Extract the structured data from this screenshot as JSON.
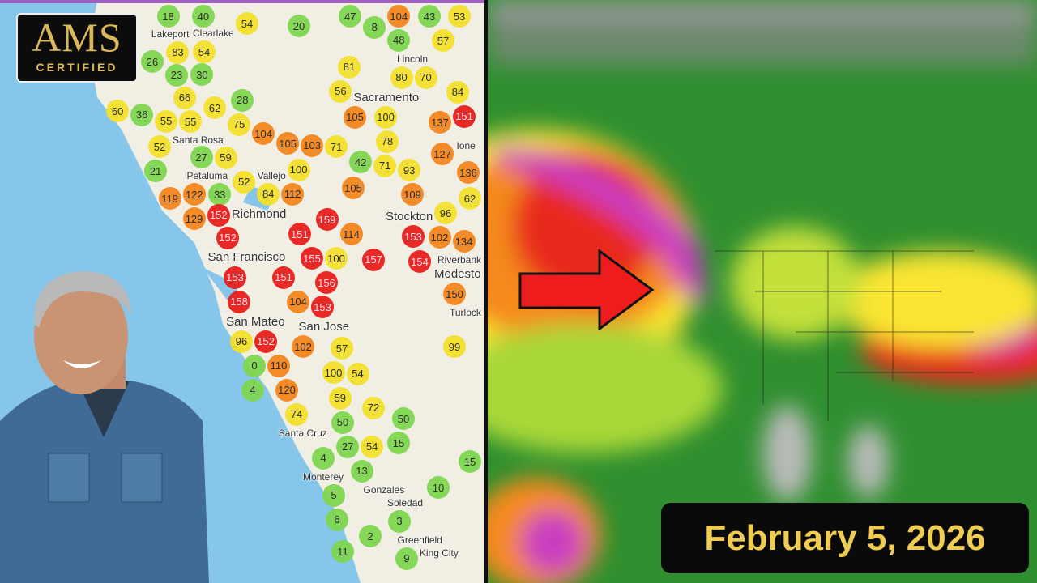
{
  "badge": {
    "line1": "AMS",
    "line2": "CERTIFIED"
  },
  "date_label": "February 5, 2026",
  "aqi_map": {
    "cities": [
      "Lakeport",
      "Clearlake",
      "Lincoln",
      "Sacramento",
      "Santa Rosa",
      "Petaluma",
      "Vallejo",
      "Richmond",
      "San Francisco",
      "Stockton",
      "Riverbank",
      "Modesto",
      "San Mateo",
      "San Jose",
      "Santa Cruz",
      "Monterey",
      "Gonzales",
      "Soledad",
      "Greenfield",
      "King City",
      "Ione",
      "Turlock"
    ],
    "readings": [
      18,
      40,
      83,
      54,
      30,
      26,
      23,
      66,
      54,
      20,
      47,
      8,
      43,
      53,
      104,
      48,
      70,
      57,
      80,
      81,
      56,
      84,
      100,
      78,
      105,
      137,
      151,
      127,
      136,
      62,
      60,
      36,
      55,
      62,
      28,
      75,
      55,
      52,
      21,
      27,
      59,
      104,
      105,
      103,
      71,
      33,
      52,
      100,
      84,
      122,
      42,
      71,
      93,
      119,
      129,
      152,
      152,
      112,
      151,
      159,
      114,
      105,
      109,
      153,
      96,
      102,
      134,
      153,
      151,
      155,
      100,
      157,
      154,
      150,
      158,
      152,
      104,
      153,
      156,
      96,
      110,
      102,
      57,
      100,
      120,
      99,
      54,
      72,
      74,
      59,
      50,
      15,
      50,
      54,
      27,
      5,
      6,
      4,
      13,
      3,
      9,
      11,
      2,
      10,
      15,
      0,
      4
    ]
  },
  "arrow_color": "#ee1c1c",
  "colors": {
    "good": "#7fd650",
    "moderate": "#f4e12c",
    "usg": "#f5861f",
    "unhealthy": "#e81f1c"
  }
}
